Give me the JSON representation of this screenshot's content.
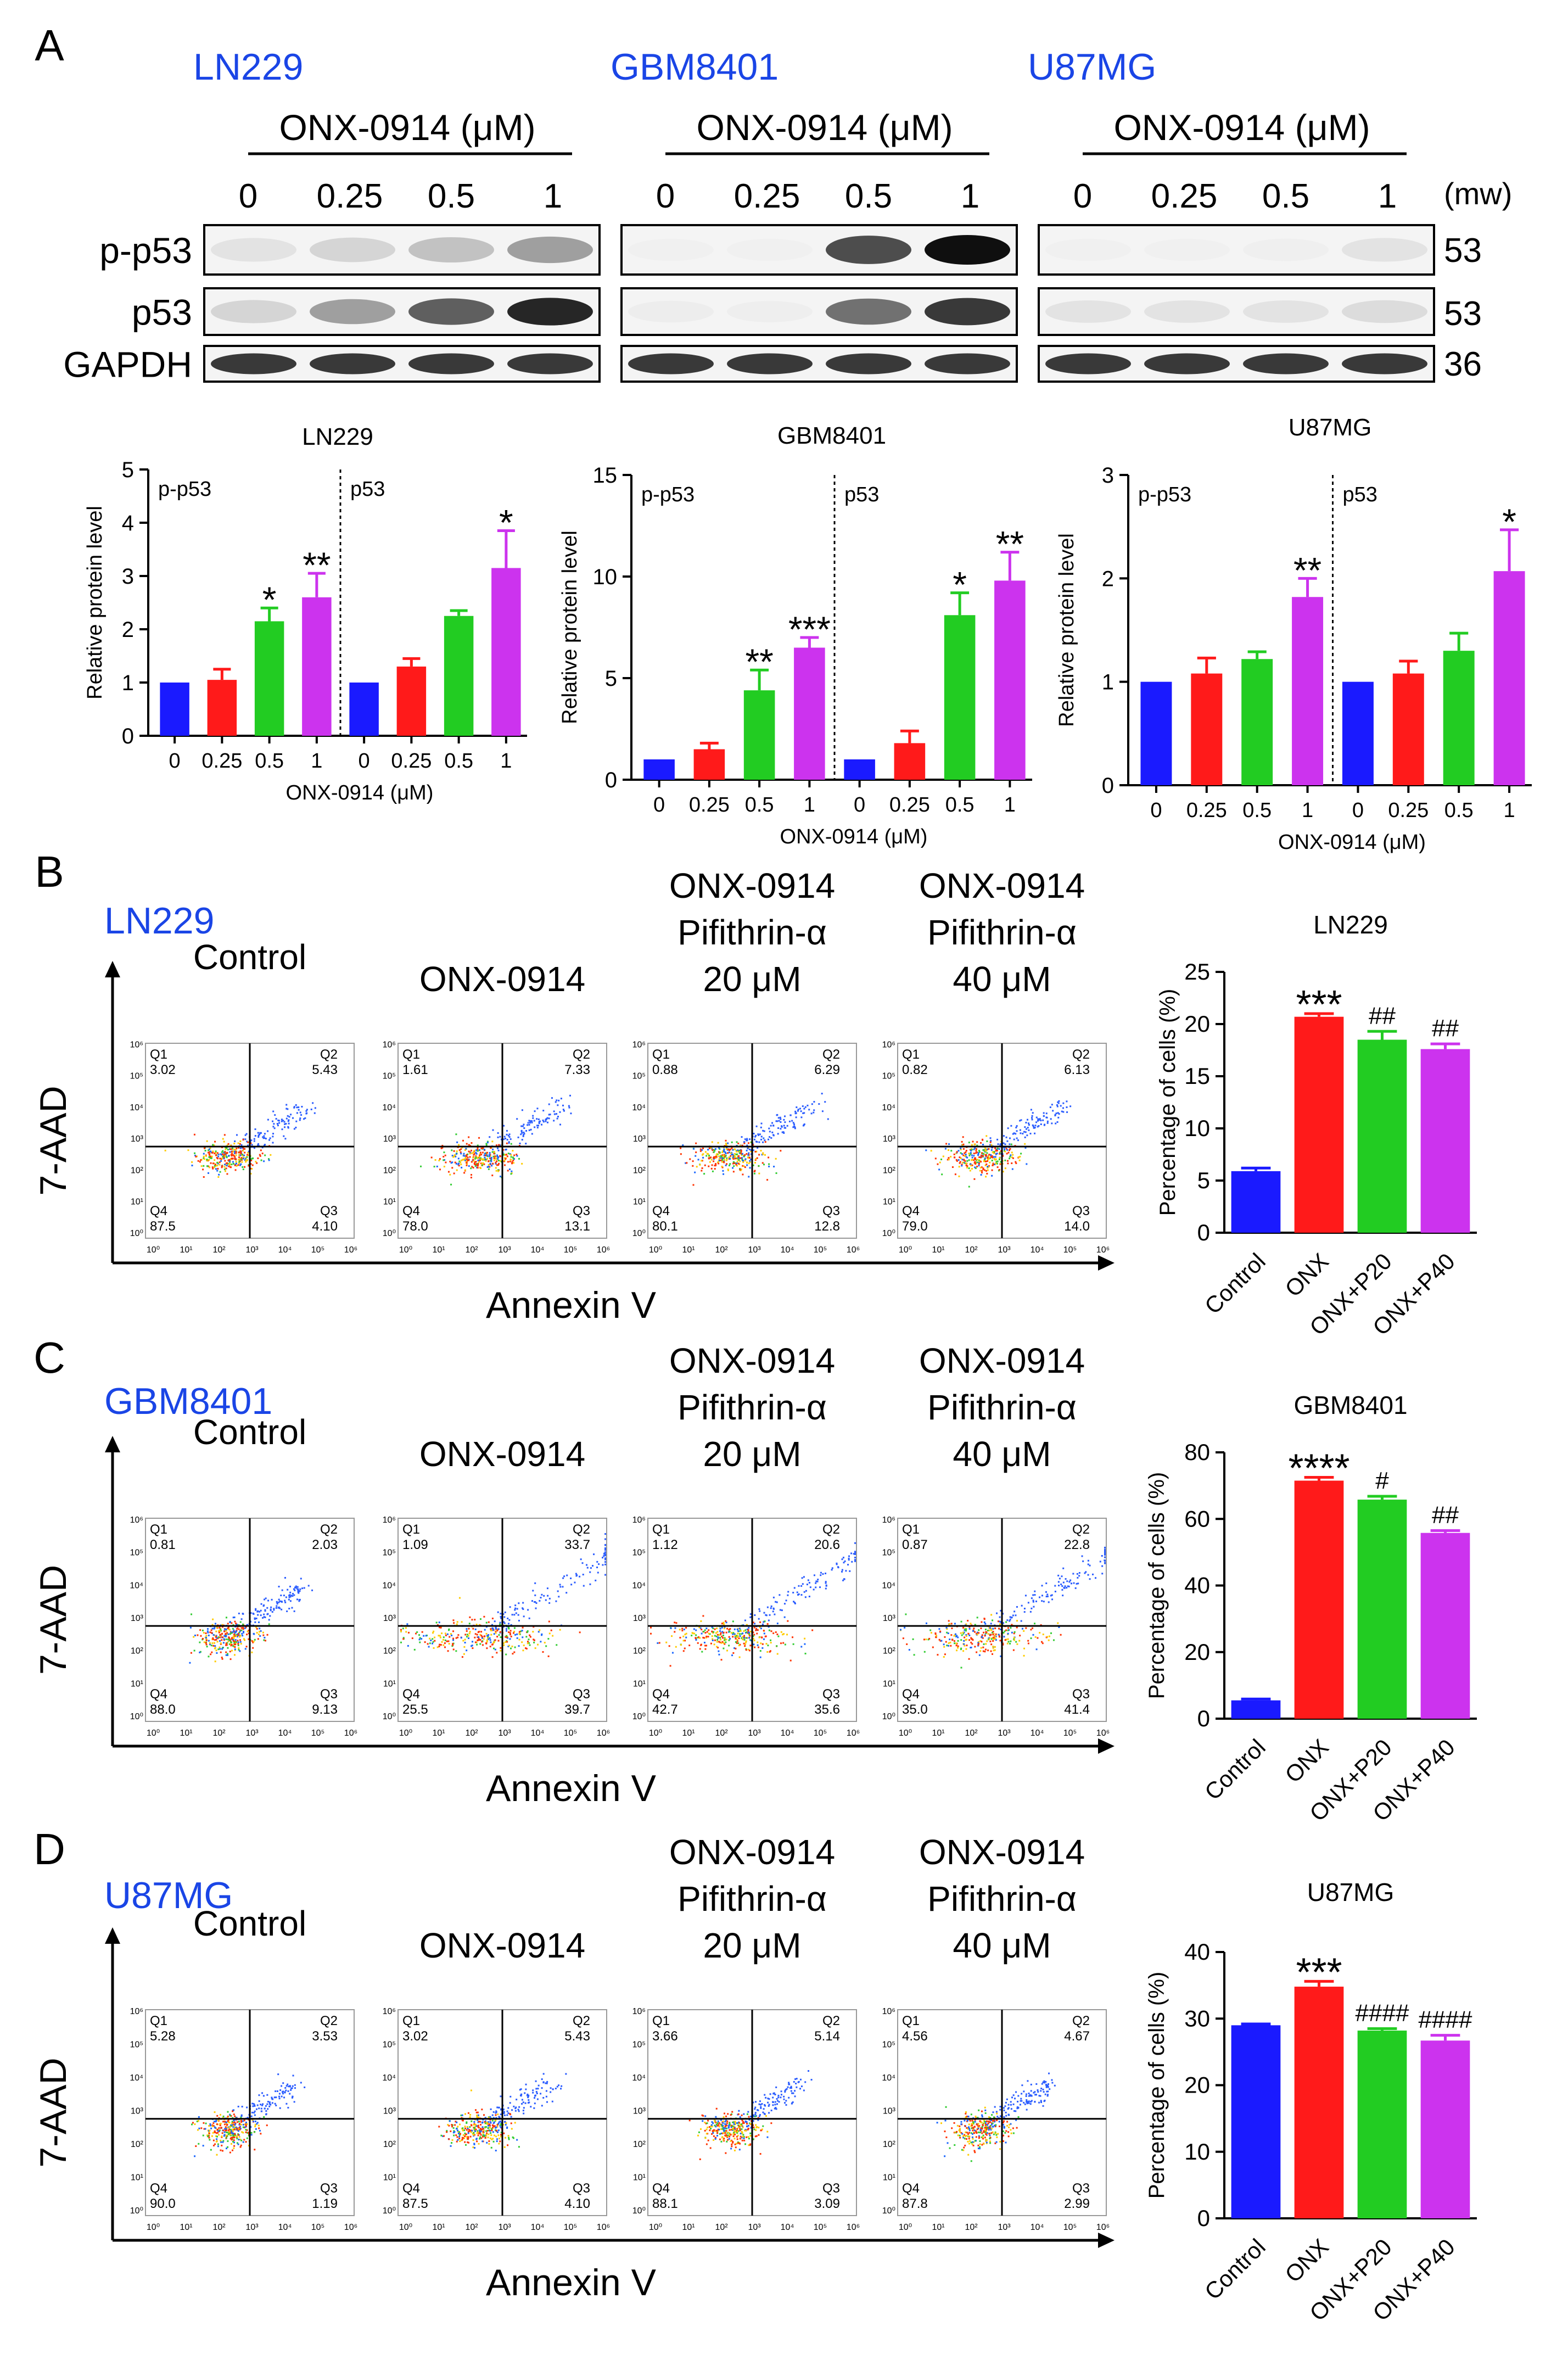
{
  "panels": {
    "A": {
      "letter": "A",
      "drug_label": "ONX-0914 (μM)",
      "doses": [
        "0",
        "0.25",
        "0.5",
        "1"
      ],
      "mw_label": "(mw)",
      "mw": [
        "53",
        "53",
        "36"
      ],
      "rows": [
        "p-p53",
        "p53",
        "GAPDH"
      ],
      "cell_lines": [
        "LN229",
        "GBM8401",
        "U87MG"
      ],
      "blot_intensity": {
        "LN229": {
          "p-p53": [
            0.25,
            0.35,
            0.45,
            0.6
          ],
          "p53": [
            0.35,
            0.6,
            0.8,
            0.95
          ],
          "GAPDH": [
            0.9,
            0.9,
            0.9,
            0.9
          ]
        },
        "GBM8401": {
          "p-p53": [
            0.05,
            0.05,
            0.85,
            1.0
          ],
          "p53": [
            0.15,
            0.1,
            0.75,
            0.9
          ],
          "GAPDH": [
            0.9,
            0.9,
            0.9,
            0.9
          ]
        },
        "U87MG": {
          "p-p53": [
            0.05,
            0.05,
            0.08,
            0.25
          ],
          "p53": [
            0.25,
            0.25,
            0.25,
            0.3
          ],
          "GAPDH": [
            0.9,
            0.9,
            0.9,
            0.9
          ]
        }
      }
    },
    "B": {
      "letter": "B",
      "cell_line": "LN229"
    },
    "C": {
      "letter": "C",
      "cell_line": "GBM8401"
    },
    "D": {
      "letter": "D",
      "cell_line": "U87MG"
    }
  },
  "flow": {
    "conditions": [
      {
        "line1": "Control",
        "line2": "",
        "line3": ""
      },
      {
        "line1": "ONX-0914",
        "line2": "",
        "line3": ""
      },
      {
        "line1": "ONX-0914",
        "line2": "Pifithrin-α",
        "line3": "20 μM"
      },
      {
        "line1": "ONX-0914",
        "line2": "Pifithrin-α",
        "line3": "40 μM"
      }
    ],
    "xlabel": "Annexin V",
    "ylabel": "7-AAD",
    "quadrant_names": [
      "Q1",
      "Q2",
      "Q3",
      "Q4"
    ],
    "ticks": [
      "10⁰",
      "10¹",
      "10²",
      "10³",
      "10⁴",
      "10⁵",
      "10⁶"
    ],
    "quadrants": {
      "B": [
        {
          "Q1": "3.02",
          "Q2": "5.43",
          "Q3": "4.10",
          "Q4": "87.5"
        },
        {
          "Q1": "1.61",
          "Q2": "7.33",
          "Q3": "13.1",
          "Q4": "78.0"
        },
        {
          "Q1": "0.88",
          "Q2": "6.29",
          "Q3": "12.8",
          "Q4": "80.1"
        },
        {
          "Q1": "0.82",
          "Q2": "6.13",
          "Q3": "14.0",
          "Q4": "79.0"
        }
      ],
      "C": [
        {
          "Q1": "0.81",
          "Q2": "2.03",
          "Q3": "9.13",
          "Q4": "88.0"
        },
        {
          "Q1": "1.09",
          "Q2": "33.7",
          "Q3": "39.7",
          "Q4": "25.5"
        },
        {
          "Q1": "1.12",
          "Q2": "20.6",
          "Q3": "35.6",
          "Q4": "42.7"
        },
        {
          "Q1": "0.87",
          "Q2": "22.8",
          "Q3": "41.4",
          "Q4": "35.0"
        }
      ],
      "D": [
        {
          "Q1": "5.28",
          "Q2": "3.53",
          "Q3": "1.19",
          "Q4": "90.0"
        },
        {
          "Q1": "3.02",
          "Q2": "5.43",
          "Q3": "4.10",
          "Q4": "87.5"
        },
        {
          "Q1": "3.66",
          "Q2": "5.14",
          "Q3": "3.09",
          "Q4": "88.1"
        },
        {
          "Q1": "4.56",
          "Q2": "4.67",
          "Q3": "2.99",
          "Q4": "87.8"
        }
      ]
    }
  },
  "colors": {
    "blue": "#1a1aff",
    "red": "#ff1a1a",
    "green": "#22cc22",
    "purple": "#cc33ee",
    "label_blue": "#1a45e6"
  },
  "chart_data": [
    {
      "id": "A-LN229",
      "type": "bar",
      "title": "LN229",
      "groups": [
        "p-p53",
        "p53"
      ],
      "categories": [
        "0",
        "0.25",
        "0.5",
        "1",
        "0",
        "0.25",
        "0.5",
        "1"
      ],
      "values": [
        1.0,
        1.05,
        2.15,
        2.6,
        1.0,
        1.3,
        2.25,
        3.15
      ],
      "errors": [
        0,
        0.2,
        0.25,
        0.45,
        0,
        0.15,
        0.1,
        0.7
      ],
      "sig": [
        "",
        "",
        "*",
        "**",
        "",
        "",
        "",
        "*"
      ],
      "xlabel": "ONX-0914 (μM)",
      "ylabel": "Relative protein level",
      "ylim": [
        0,
        5
      ],
      "yticks": [
        "0",
        "1",
        "2",
        "3",
        "4",
        "5"
      ]
    },
    {
      "id": "A-GBM8401",
      "type": "bar",
      "title": "GBM8401",
      "groups": [
        "p-p53",
        "p53"
      ],
      "categories": [
        "0",
        "0.25",
        "0.5",
        "1",
        "0",
        "0.25",
        "0.5",
        "1"
      ],
      "values": [
        1.0,
        1.5,
        4.4,
        6.5,
        1.0,
        1.8,
        8.1,
        9.8
      ],
      "errors": [
        0,
        0.3,
        1.0,
        0.5,
        0,
        0.6,
        1.1,
        1.4
      ],
      "sig": [
        "",
        "",
        "**",
        "***",
        "",
        "",
        "*",
        "**"
      ],
      "xlabel": "ONX-0914 (μM)",
      "ylabel": "Relative protein level",
      "ylim": [
        0,
        15
      ],
      "yticks": [
        "0",
        "5",
        "10",
        "15"
      ]
    },
    {
      "id": "A-U87MG",
      "type": "bar",
      "title": "U87MG",
      "groups": [
        "p-p53",
        "p53"
      ],
      "categories": [
        "0",
        "0.25",
        "0.5",
        "1",
        "0",
        "0.25",
        "0.5",
        "1"
      ],
      "values": [
        1.0,
        1.08,
        1.22,
        1.82,
        1.0,
        1.08,
        1.3,
        2.07
      ],
      "errors": [
        0,
        0.15,
        0.07,
        0.18,
        0,
        0.12,
        0.17,
        0.4
      ],
      "sig": [
        "",
        "",
        "",
        "**",
        "",
        "",
        "",
        "*"
      ],
      "xlabel": "ONX-0914 (μM)",
      "ylabel": "Relative protein level",
      "ylim": [
        0,
        3
      ],
      "yticks": [
        "0",
        "1",
        "2",
        "3"
      ]
    },
    {
      "id": "B-LN229",
      "type": "bar",
      "title": "LN229",
      "categories": [
        "Control",
        "ONX",
        "ONX+P20",
        "ONX+P40"
      ],
      "values": [
        5.9,
        20.7,
        18.5,
        17.6
      ],
      "errors": [
        0.3,
        0.3,
        0.8,
        0.5
      ],
      "sig": [
        "",
        "***",
        "##",
        "##"
      ],
      "ylabel": "Percentage of cells (%)",
      "ylim": [
        0,
        25
      ],
      "yticks": [
        "0",
        "5",
        "10",
        "15",
        "20",
        "25"
      ]
    },
    {
      "id": "C-GBM8401",
      "type": "bar",
      "title": "GBM8401",
      "categories": [
        "Control",
        "ONX",
        "ONX+P20",
        "ONX+P40"
      ],
      "values": [
        5.5,
        71.5,
        65.8,
        55.8
      ],
      "errors": [
        0.4,
        1.0,
        1.0,
        0.7
      ],
      "sig": [
        "",
        "****",
        "#",
        "##"
      ],
      "ylabel": "Percentage of cells (%)",
      "ylim": [
        0,
        80
      ],
      "yticks": [
        "0",
        "20",
        "40",
        "60",
        "80"
      ]
    },
    {
      "id": "D-U87MG",
      "type": "bar",
      "title": "U87MG",
      "categories": [
        "Control",
        "ONX",
        "ONX+P20",
        "ONX+P40"
      ],
      "values": [
        29.0,
        34.8,
        28.2,
        26.7
      ],
      "errors": [
        0.2,
        0.8,
        0.3,
        0.8
      ],
      "sig": [
        "",
        "***",
        "####",
        "####"
      ],
      "ylabel": "Percentage of cells (%)",
      "ylim": [
        0,
        40
      ],
      "yticks": [
        "0",
        "10",
        "20",
        "30",
        "40"
      ]
    }
  ]
}
